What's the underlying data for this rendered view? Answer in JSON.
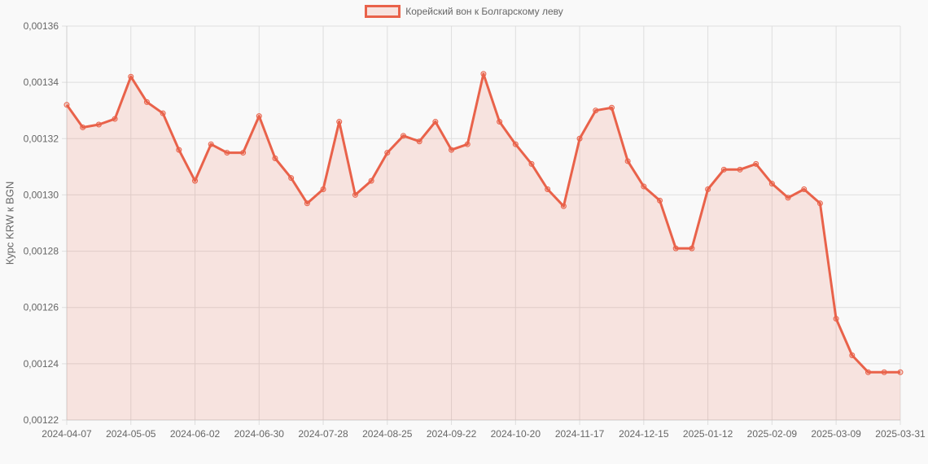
{
  "chart_data": {
    "type": "line",
    "title": "",
    "legend": {
      "position": "top",
      "entries": [
        "Корейский вон к Болгарскому леву"
      ]
    },
    "series": [
      {
        "name": "Корейский вон к Болгарскому леву",
        "color": "#e9624a",
        "fill": "rgba(233,98,74,0.15)",
        "values": [
          0.001332,
          0.001324,
          0.001325,
          0.001327,
          0.001342,
          0.001333,
          0.001329,
          0.001316,
          0.001305,
          0.001318,
          0.001315,
          0.001315,
          0.001328,
          0.001313,
          0.001306,
          0.001297,
          0.001302,
          0.001326,
          0.0013,
          0.001305,
          0.001315,
          0.001321,
          0.001319,
          0.001326,
          0.001316,
          0.001318,
          0.001343,
          0.001326,
          0.001318,
          0.001311,
          0.001302,
          0.001296,
          0.00132,
          0.00133,
          0.001331,
          0.001312,
          0.001303,
          0.001298,
          0.001281,
          0.001281,
          0.001302,
          0.001309,
          0.001309,
          0.001311,
          0.001304,
          0.001299,
          0.001302,
          0.001297,
          0.001256,
          0.001243,
          0.001237,
          0.001237,
          0.001237
        ]
      }
    ],
    "x_start": "2024-04-07",
    "x_step_days": 7,
    "x_last": "2025-03-31",
    "x_tick_labels": [
      "2024-04-07",
      "2024-05-05",
      "2024-06-02",
      "2024-06-30",
      "2024-07-28",
      "2024-08-25",
      "2024-09-22",
      "2024-10-20",
      "2024-11-17",
      "2024-12-15",
      "2025-01-12",
      "2025-02-09",
      "2025-03-09",
      "2025-03-31"
    ],
    "y_ticks": [
      0.00136,
      0.00134,
      0.00132,
      0.0013,
      0.00128,
      0.00126,
      0.00124,
      0.00122
    ],
    "y_tick_labels": [
      "0,00136",
      "0,00134",
      "0,00132",
      "0,00130",
      "0,00128",
      "0,00126",
      "0,00124",
      "0,00122"
    ],
    "ylim": [
      0.00122,
      0.00136
    ],
    "xlabel": "",
    "ylabel": "Курс KRW к BGN",
    "grid": true
  },
  "legend": {
    "label": "Корейский вон к Болгарскому леву"
  },
  "axis": {
    "ylabel": "Курс KRW к BGN"
  }
}
